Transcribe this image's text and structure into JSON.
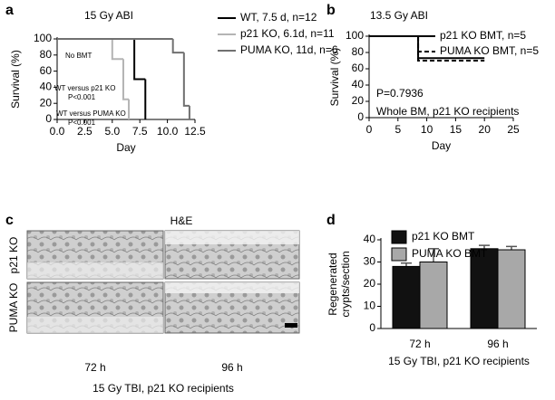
{
  "chart_data": [
    {
      "panel": "a",
      "type": "step",
      "title": "15 Gy ABI",
      "xlabel": "Day",
      "ylabel": "Survival (%)",
      "xlim": [
        0,
        12.5
      ],
      "xticks": [
        {
          "value": 0,
          "label": "0.0"
        },
        2.5,
        {
          "value": 5,
          "label": "5.0"
        },
        7.5,
        {
          "value": 10,
          "label": "10.0"
        },
        12.5
      ],
      "ylim": [
        0,
        100
      ],
      "yticks": [
        0,
        20,
        40,
        60,
        80,
        100
      ],
      "series": [
        {
          "name": "WT, 7.5 d, n=12",
          "color": "#000000",
          "x": [
            0,
            7,
            8
          ],
          "values": [
            100,
            50,
            0
          ]
        },
        {
          "name": "p21 KO, 6.1d, n=11",
          "color": "#b4b4b4",
          "x": [
            0,
            5,
            6,
            6.5
          ],
          "values": [
            100,
            75,
            25,
            0
          ]
        },
        {
          "name": "PUMA KO, 11d, n=6",
          "color": "#707070",
          "x": [
            0,
            10.5,
            11.5,
            12
          ],
          "values": [
            100,
            83,
            17,
            0
          ]
        }
      ],
      "annotations": [
        "No BMT",
        "WT versus p21 KO",
        "P<0.001",
        "WT versus PUMA KO",
        "P<0.001"
      ]
    },
    {
      "panel": "b",
      "type": "step",
      "title": "13.5 Gy ABI",
      "xlabel": "Day",
      "ylabel": "Survival (%)",
      "xlim": [
        0,
        25
      ],
      "xticks": [
        0,
        5,
        10,
        15,
        20,
        25
      ],
      "ylim": [
        0,
        100
      ],
      "yticks": [
        0,
        20,
        40,
        60,
        80,
        100
      ],
      "series": [
        {
          "name": "p21 KO BMT, n=5",
          "color": "#000000",
          "x": [
            0,
            8.5,
            20
          ],
          "values": [
            100,
            73,
            73
          ]
        },
        {
          "name": "PUMA KO BMT, n=5",
          "color": "#000000",
          "dash": true,
          "x": [
            0,
            8.5,
            20
          ],
          "values": [
            100,
            70,
            70
          ]
        }
      ],
      "annotations": [
        "P=0.7936",
        "Whole BM, p21 KO recipients"
      ]
    },
    {
      "panel": "d",
      "type": "bar",
      "xlabel": "15 Gy TBI, p21 KO recipients",
      "ylabel": [
        "Regenerated",
        "crypts/section"
      ],
      "categories": [
        "72 h",
        "96 h"
      ],
      "ylim": [
        0,
        40
      ],
      "yticks": [
        0,
        10,
        20,
        30,
        40
      ],
      "series": [
        {
          "name": "p21 KO BMT",
          "color": "#111111",
          "values": [
            28,
            36
          ],
          "errors": [
            1.5,
            1.5
          ]
        },
        {
          "name": "PUMA KO BMT",
          "color": "#a8a8a8",
          "values": [
            30,
            35.5
          ],
          "errors": [
            6,
            1.5
          ]
        }
      ]
    }
  ],
  "histology": {
    "panel": "c",
    "title": "H&E",
    "row_labels": [
      "p21 KO",
      "PUMA KO"
    ],
    "col_labels": [
      "72 h",
      "96 h"
    ],
    "caption": "15 Gy TBI, p21 KO recipients"
  }
}
